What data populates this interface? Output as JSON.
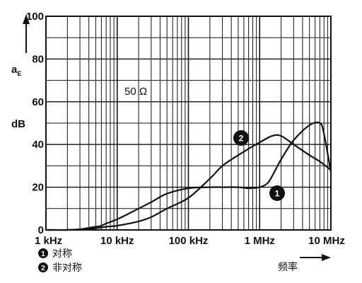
{
  "chart_data": {
    "type": "line",
    "x_scale": "log",
    "x_ticks": [
      {
        "value": 1000,
        "label": "1 kHz"
      },
      {
        "value": 10000,
        "label": "10 kHz"
      },
      {
        "value": 100000,
        "label": "100 kHz"
      },
      {
        "value": 1000000,
        "label": "1 MHz"
      },
      {
        "value": 10000000,
        "label": "10 MHz"
      }
    ],
    "xlim": [
      1000,
      10000000
    ],
    "ylim": [
      0,
      100
    ],
    "y_ticks": [
      0,
      20,
      40,
      60,
      80,
      100
    ],
    "grid": true,
    "ylabel_main": "a",
    "ylabel_sub": "E",
    "yunit": "dB",
    "xlabel": "频率",
    "annotation": "50 Ω",
    "series": [
      {
        "id": 1,
        "name": "对称",
        "x": [
          1000,
          2000,
          3000,
          4000,
          5000,
          6000,
          7000,
          10000,
          20000,
          30000,
          50000,
          100000,
          200000,
          300000,
          500000,
          700000,
          1000000,
          1300000,
          1600000,
          2000000,
          3000000,
          5000000,
          7000000,
          8000000,
          10000000
        ],
        "y": [
          0,
          0,
          0.3,
          1,
          1.5,
          2,
          3,
          5,
          10,
          13,
          17,
          19.5,
          20,
          20,
          20,
          19.5,
          20,
          22,
          27,
          33,
          42,
          49,
          50,
          45,
          27
        ]
      },
      {
        "id": 2,
        "name": "非对称",
        "x": [
          1000,
          2000,
          3000,
          5000,
          7000,
          10000,
          20000,
          30000,
          50000,
          100000,
          200000,
          300000,
          500000,
          700000,
          1000000,
          1500000,
          2000000,
          3000000,
          5000000,
          7000000,
          10000000
        ],
        "y": [
          0,
          0,
          0.3,
          0.8,
          1.5,
          2,
          4,
          6,
          10,
          15,
          24,
          30,
          35,
          38,
          41,
          44,
          44,
          40,
          35,
          32,
          28
        ]
      }
    ],
    "legend": [
      {
        "id": "1",
        "label": "对称"
      },
      {
        "id": "2",
        "label": "非对称"
      }
    ]
  }
}
